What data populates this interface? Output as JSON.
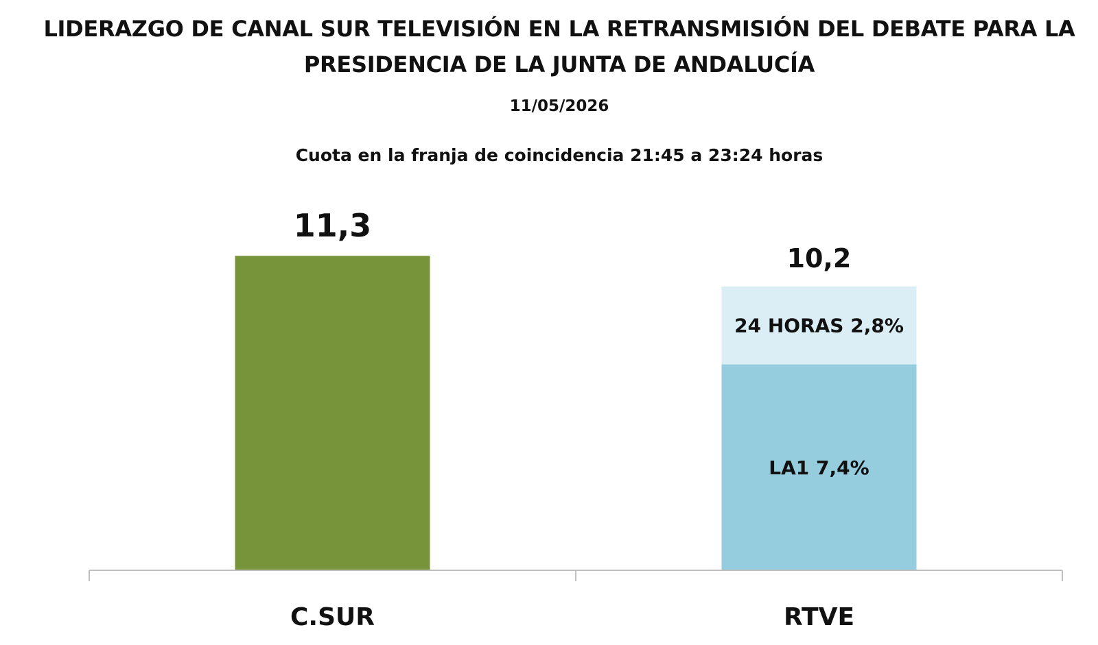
{
  "title_line1": "LIDERAZGO DE CANAL SUR TELEVISIÓN EN LA RETRANSMISIÓN DEL DEBATE PARA LA",
  "title_line2": "PRESIDENCIA DE LA JUNTA DE ANDALUCÍA",
  "date": "11/05/2026",
  "subtitle": "Cuota en la franja de coincidencia 21:45 a 23:24 horas",
  "chart_data": {
    "type": "bar",
    "stacked": true,
    "grid": false,
    "legend": "none",
    "ylim": [
      0,
      12
    ],
    "categories": [
      "C.SUR",
      "RTVE"
    ],
    "totals": [
      11.3,
      10.2
    ],
    "total_labels": [
      "11,3",
      "10,2"
    ],
    "bars": [
      {
        "category": "C.SUR",
        "total_label": "11,3",
        "segments": [
          {
            "value": 11.3,
            "label": "",
            "color": "#78943b"
          }
        ]
      },
      {
        "category": "RTVE",
        "total_label": "10,2",
        "segments": [
          {
            "value": 7.4,
            "label": "LA1 7,4%",
            "color": "#95cddf"
          },
          {
            "value": 2.8,
            "label": "24 HORAS 2,8%",
            "color": "#dbeef5"
          }
        ]
      }
    ]
  }
}
